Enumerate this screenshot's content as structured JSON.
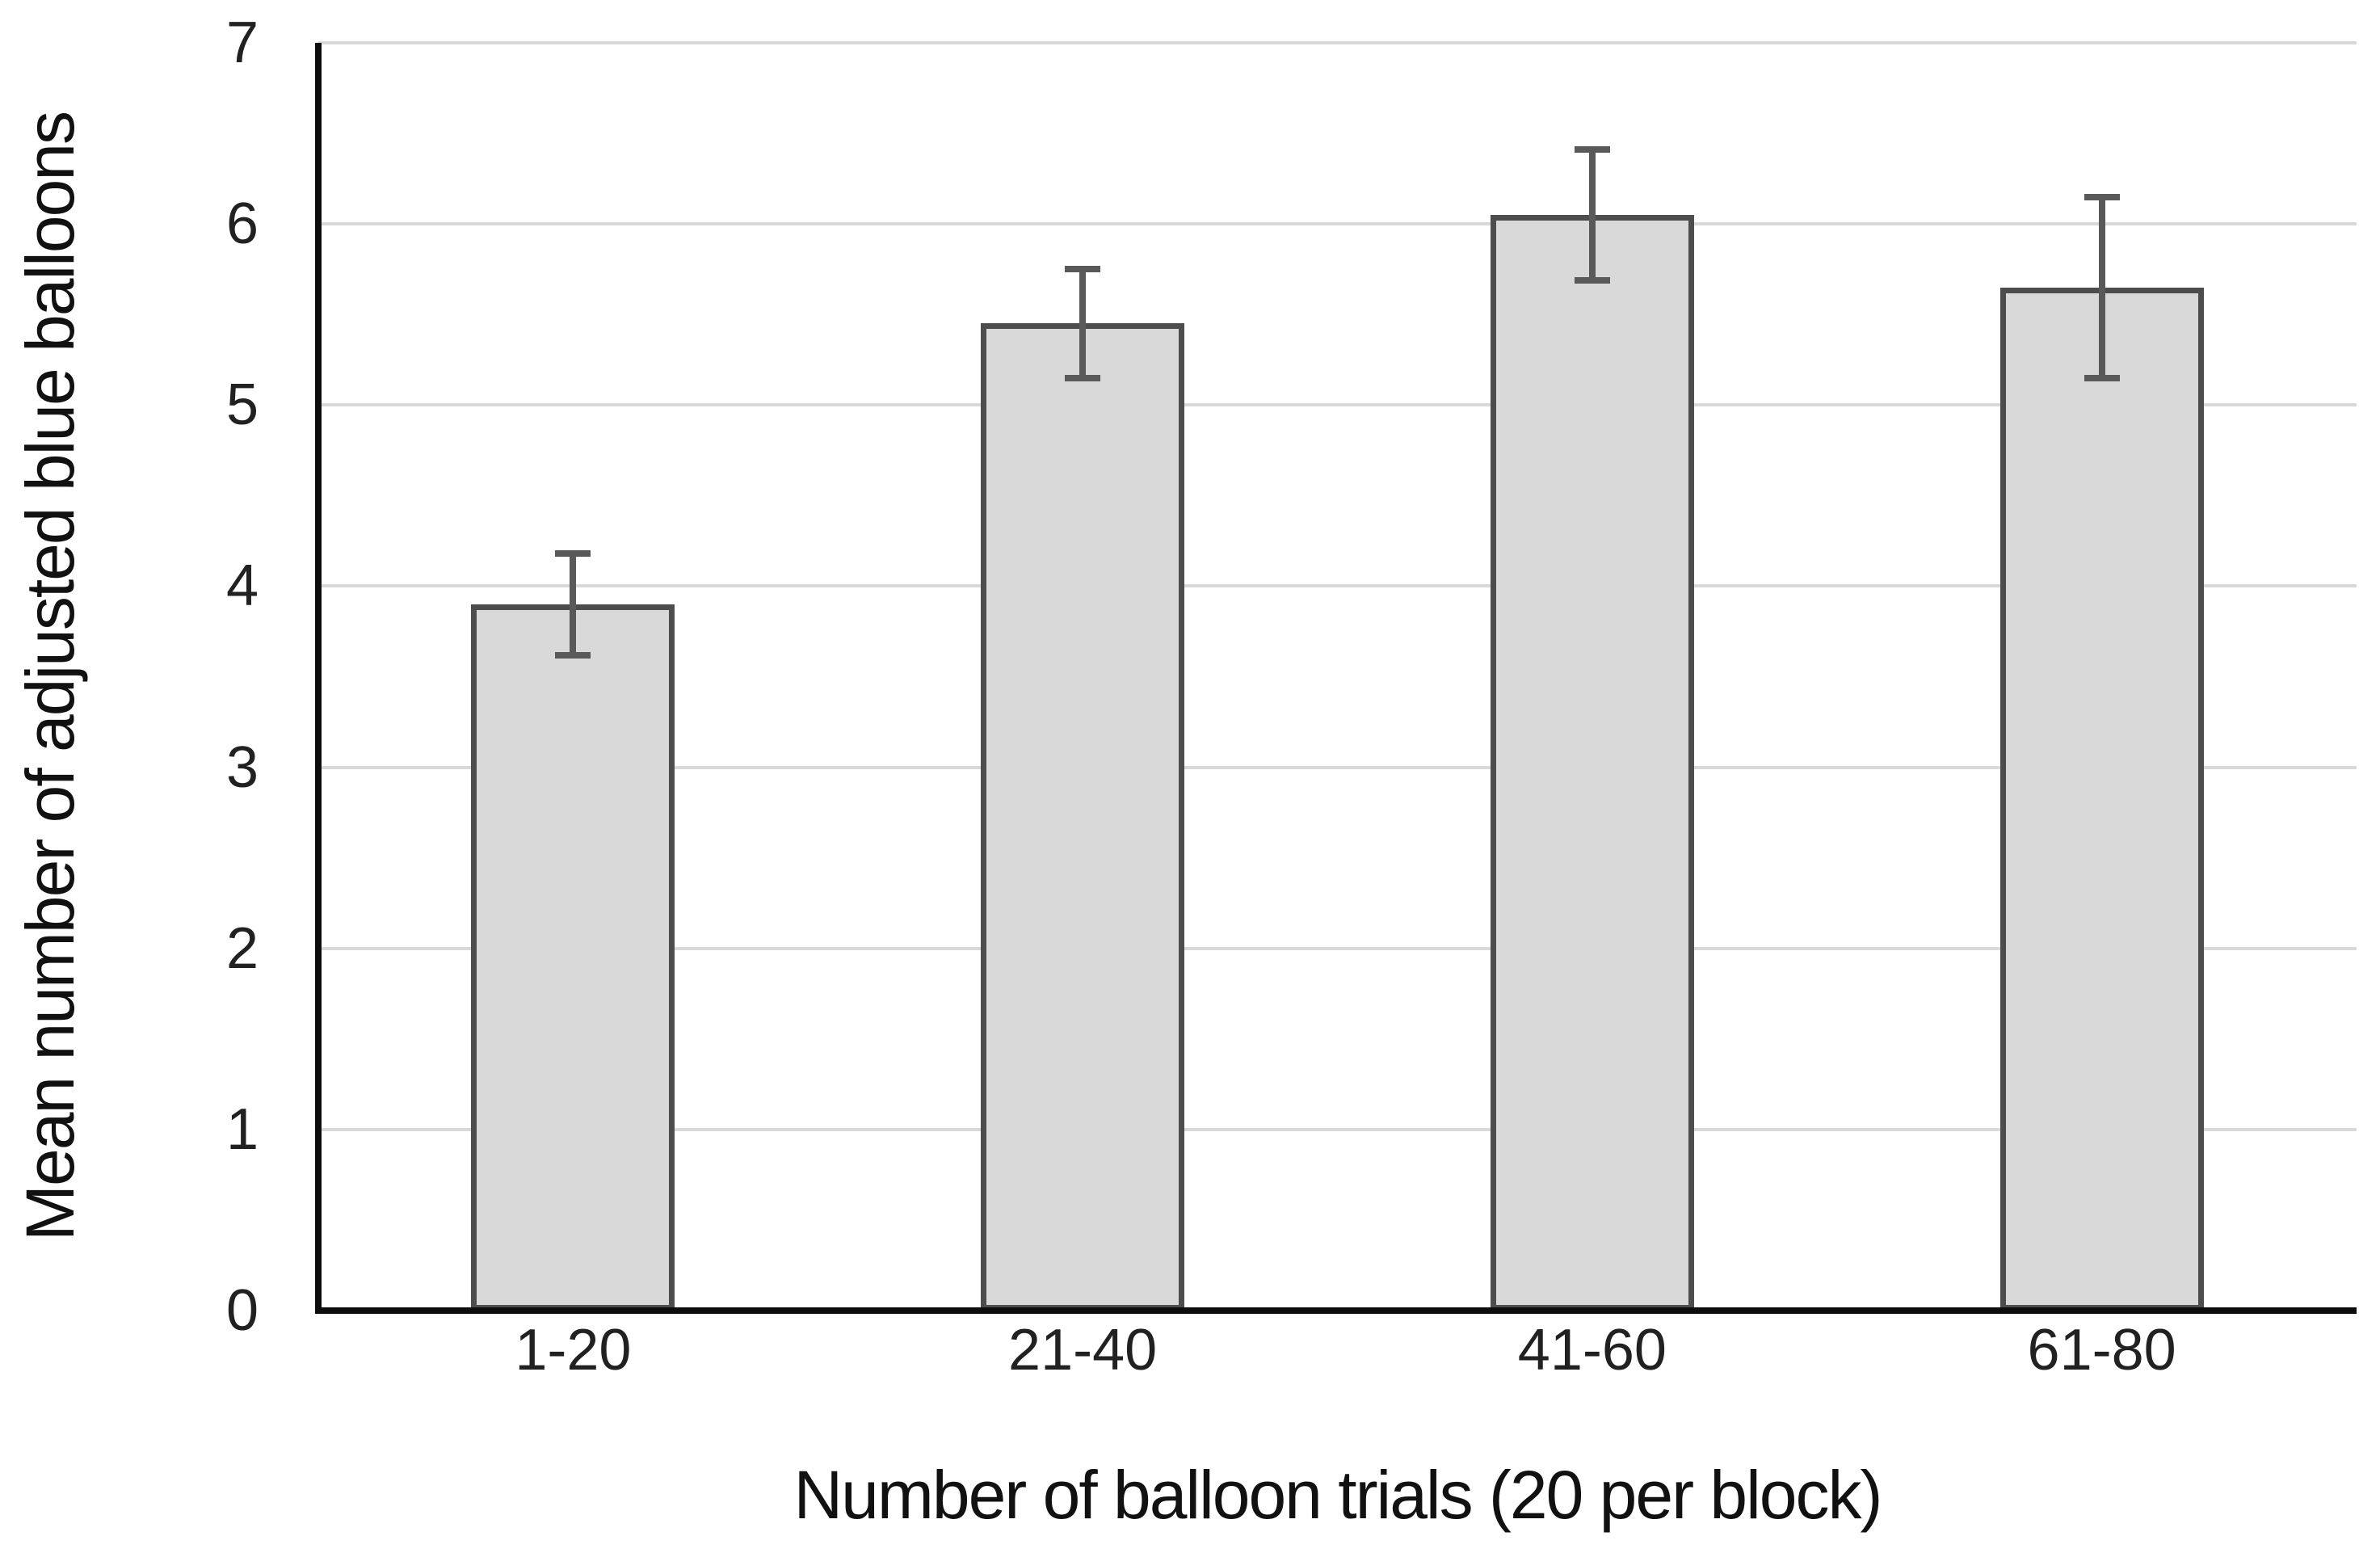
{
  "figure": {
    "background": "#ffffff"
  },
  "chart_data": {
    "type": "bar",
    "categories": [
      "1-20",
      "21-40",
      "41-60",
      "61-80"
    ],
    "values": [
      3.9,
      5.45,
      6.05,
      5.65
    ],
    "error_bars": [
      0.28,
      0.3,
      0.36,
      0.5
    ],
    "title": "",
    "xlabel": "Number of balloon trials (20 per block)",
    "ylabel": "Mean number of adjusted blue balloons",
    "ylim": [
      0,
      7
    ],
    "yticks": [
      0,
      1,
      2,
      3,
      4,
      5,
      6,
      7
    ],
    "grid": true,
    "legend": "none",
    "bar_fill_color": "#d9d9d9",
    "bar_border_color": "#4d4d4d",
    "error_bar_color": "#595959",
    "gridline_color": "#d9d9d9",
    "axis_line_color": "#0d0d0d",
    "text_color": "#212121"
  }
}
